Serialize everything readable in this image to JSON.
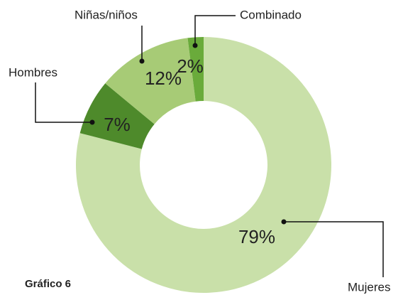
{
  "chart_data": {
    "type": "donut",
    "title": "Gráfico 6",
    "categories": [
      "Mujeres",
      "Hombres",
      "Niñas/niños",
      "Combinado"
    ],
    "values": [
      79,
      7,
      12,
      2
    ],
    "value_labels": [
      "79%",
      "7%",
      "12%",
      "2%"
    ],
    "colors": [
      "#c9e0a9",
      "#4e8a2b",
      "#a7cb76",
      "#6aab3b"
    ]
  }
}
